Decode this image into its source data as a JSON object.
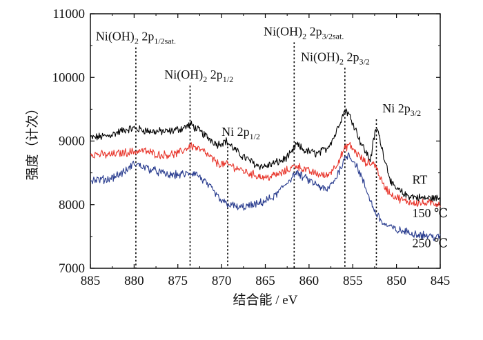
{
  "chart_data": {
    "type": "line",
    "xlabel": "结合能 / eV",
    "ylabel": "强度（计次）",
    "xlim": [
      885,
      845
    ],
    "ylim": [
      7000,
      11000
    ],
    "x_ticks": [
      "885",
      "880",
      "875",
      "870",
      "865",
      "860",
      "855",
      "850",
      "845"
    ],
    "y_ticks": [
      "7000",
      "8000",
      "9000",
      "10000",
      "11000"
    ],
    "series": [
      {
        "name": "RT",
        "color": "#000000",
        "points": [
          [
            885,
            9050
          ],
          [
            883,
            9080
          ],
          [
            881,
            9180
          ],
          [
            880,
            9200
          ],
          [
            878,
            9150
          ],
          [
            876,
            9150
          ],
          [
            874.5,
            9200
          ],
          [
            873.5,
            9260
          ],
          [
            872,
            9100
          ],
          [
            870.5,
            8950
          ],
          [
            869.5,
            9000
          ],
          [
            868,
            8800
          ],
          [
            866,
            8620
          ],
          [
            865,
            8600
          ],
          [
            863,
            8700
          ],
          [
            862,
            8800
          ],
          [
            861.5,
            8950
          ],
          [
            860.5,
            8850
          ],
          [
            859,
            8800
          ],
          [
            858,
            8880
          ],
          [
            857,
            9100
          ],
          [
            856.5,
            9300
          ],
          [
            855.8,
            9500
          ],
          [
            855,
            9300
          ],
          [
            854,
            8950
          ],
          [
            853,
            8700
          ],
          [
            852.5,
            9100
          ],
          [
            852.2,
            9200
          ],
          [
            851.5,
            8800
          ],
          [
            850.5,
            8300
          ],
          [
            849,
            8150
          ],
          [
            847,
            8100
          ],
          [
            845,
            8100
          ]
        ]
      },
      {
        "name": "150 ℃",
        "color": "#e8352b",
        "points": [
          [
            885,
            8800
          ],
          [
            883,
            8780
          ],
          [
            881,
            8820
          ],
          [
            879,
            8850
          ],
          [
            877,
            8780
          ],
          [
            875,
            8800
          ],
          [
            873.5,
            8930
          ],
          [
            872,
            8830
          ],
          [
            870.5,
            8650
          ],
          [
            869,
            8620
          ],
          [
            867,
            8500
          ],
          [
            865,
            8420
          ],
          [
            863,
            8500
          ],
          [
            862,
            8580
          ],
          [
            861.5,
            8620
          ],
          [
            860,
            8520
          ],
          [
            858,
            8450
          ],
          [
            857,
            8600
          ],
          [
            856,
            8850
          ],
          [
            855.5,
            8950
          ],
          [
            854.5,
            8800
          ],
          [
            853.5,
            8650
          ],
          [
            852.5,
            8650
          ],
          [
            851.5,
            8300
          ],
          [
            850.5,
            8150
          ],
          [
            849,
            8050
          ],
          [
            847,
            8020
          ],
          [
            845,
            8020
          ]
        ]
      },
      {
        "name": "250 ℃",
        "color": "#2a3d8f",
        "points": [
          [
            885,
            8380
          ],
          [
            883,
            8400
          ],
          [
            881,
            8520
          ],
          [
            880,
            8650
          ],
          [
            878,
            8550
          ],
          [
            876,
            8460
          ],
          [
            874,
            8480
          ],
          [
            873,
            8500
          ],
          [
            871.5,
            8300
          ],
          [
            870,
            8050
          ],
          [
            868,
            7950
          ],
          [
            866,
            8000
          ],
          [
            864,
            8120
          ],
          [
            862.5,
            8350
          ],
          [
            861.5,
            8500
          ],
          [
            860,
            8380
          ],
          [
            858,
            8220
          ],
          [
            857,
            8400
          ],
          [
            856,
            8700
          ],
          [
            855.5,
            8800
          ],
          [
            854.5,
            8600
          ],
          [
            853.5,
            8250
          ],
          [
            852.5,
            7900
          ],
          [
            851.5,
            7700
          ],
          [
            850,
            7600
          ],
          [
            848,
            7550
          ],
          [
            846,
            7500
          ],
          [
            845,
            7480
          ]
        ]
      }
    ],
    "series_labels": [
      {
        "text": "RT",
        "x": 848.2,
        "y": 8330
      },
      {
        "text": "150 ℃",
        "x": 848.2,
        "y": 7800
      },
      {
        "text": "250 ℃",
        "x": 848.2,
        "y": 7330
      }
    ],
    "reference_lines": [
      {
        "x": 879.8,
        "label_main": "Ni(OH)",
        "label_sub": "2",
        "label_tail": " 2p",
        "label_tail_sub": "1/2sat.",
        "label_x": 879.8,
        "label_y": 10580
      },
      {
        "x": 873.6,
        "label_main": "Ni(OH)",
        "label_sub": "2",
        "label_tail": " 2p",
        "label_tail_sub": "1/2",
        "label_x": 872.6,
        "label_y": 9980
      },
      {
        "x": 869.3,
        "label_main": "Ni 2p",
        "label_sub": "",
        "label_tail": "",
        "label_tail_sub": "1/2",
        "label_x": 867.8,
        "label_y": 9080
      },
      {
        "x": 861.7,
        "label_main": "Ni(OH)",
        "label_sub": "2",
        "label_tail": " 2p",
        "label_tail_sub": "3/2sat.",
        "label_x": 860.6,
        "label_y": 10660
      },
      {
        "x": 855.9,
        "label_main": "Ni(OH)",
        "label_sub": "2",
        "label_tail": " 2p",
        "label_tail_sub": "3/2",
        "label_x": 857.0,
        "label_y": 10260
      },
      {
        "x": 852.3,
        "label_main": "Ni 2p",
        "label_sub": "",
        "label_tail": "",
        "label_tail_sub": "3/2",
        "label_x": 849.4,
        "label_y": 9450
      }
    ],
    "grid": false,
    "legend": "none"
  }
}
